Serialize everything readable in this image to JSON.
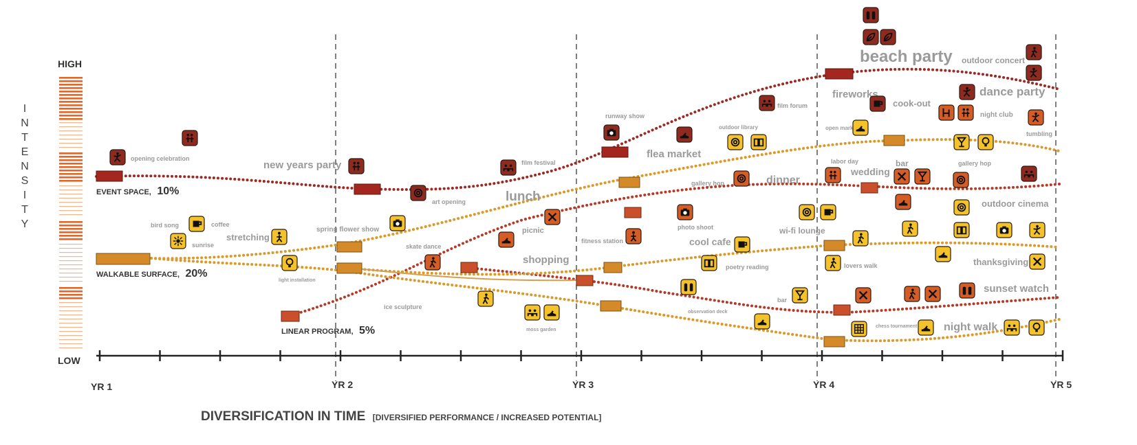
{
  "axis": {
    "y_letters": [
      "I",
      "N",
      "T",
      "E",
      "N",
      "S",
      "I",
      "T",
      "Y"
    ],
    "high": "HIGH",
    "low": "LOW",
    "years": [
      "YR 1",
      "YR 2",
      "YR 3",
      "YR 4",
      "YR 5"
    ],
    "x_title": "DIVERSIFICATION IN TIME",
    "x_subtitle": "[DIVERSIFIED PERFORMANCE / INCREASED POTENTIAL]"
  },
  "series": [
    {
      "id": "event",
      "label": "EVENT SPACE,",
      "pct": "10%",
      "color": "#9e2a24"
    },
    {
      "id": "walk",
      "label": "WALKABLE SURFACE,",
      "pct": "20%",
      "color": "#d99a2b"
    },
    {
      "id": "linear",
      "label": "LINEAR PROGRAM,",
      "pct": "5%",
      "color": "#c9502a"
    }
  ],
  "colors": {
    "dark_red": "#8e2a20",
    "red": "#a33526",
    "orange": "#cf5a27",
    "amber": "#d98a2b",
    "yellow": "#f4c22a",
    "label_gray": "#9a9a9a"
  },
  "labels": {
    "opening_celebration": "opening celebration",
    "new_years_party": "new years party",
    "art_opening": "art opening",
    "film_festival": "film festival",
    "runway_show": "runway show",
    "flea_market": "flea market",
    "film_forum": "film forum",
    "outdoor_library": "outdoor library",
    "fireworks": "fireworks",
    "beach_party": "beach party",
    "outdoor_concert": "outdoor concert",
    "dance_party": "dance party",
    "cook_out": "cook-out",
    "open_market": "open market",
    "night_club": "night club",
    "tumbling": "tumbling",
    "bird_song": "bird song",
    "coffee": "coffee",
    "sunrise": "sunrise",
    "stretching": "stretching",
    "light_installation": "light installation",
    "spring_flower_show": "spring flower show",
    "skate_dance": "skate dance",
    "picnic": "picnic",
    "lunch": "lunch",
    "shopping": "shopping",
    "ice_sculpture": "ice sculpture",
    "moss_garden": "moss garden",
    "fitness_station": "fitness station",
    "photo_shoot": "photo shoot",
    "gallery_hop": "gallery hop",
    "dinner": "dinner",
    "cool_cafe": "cool cafe",
    "poetry_reading": "poetry reading",
    "wifi_lounge": "wi-fi lounge",
    "observation_deck": "observation deck",
    "bar": "bar",
    "labor_day": "labor day",
    "wedding": "wedding",
    "bar2": "bar",
    "gallery_hop2": "gallery hop",
    "outdoor_cinema": "outdoor cinema",
    "lovers_walk": "lovers walk",
    "thanksgiving": "thanksgiving",
    "sunset_watch": "sunset watch",
    "chess_tournament": "chess tournament",
    "night_walk": "night walk"
  }
}
